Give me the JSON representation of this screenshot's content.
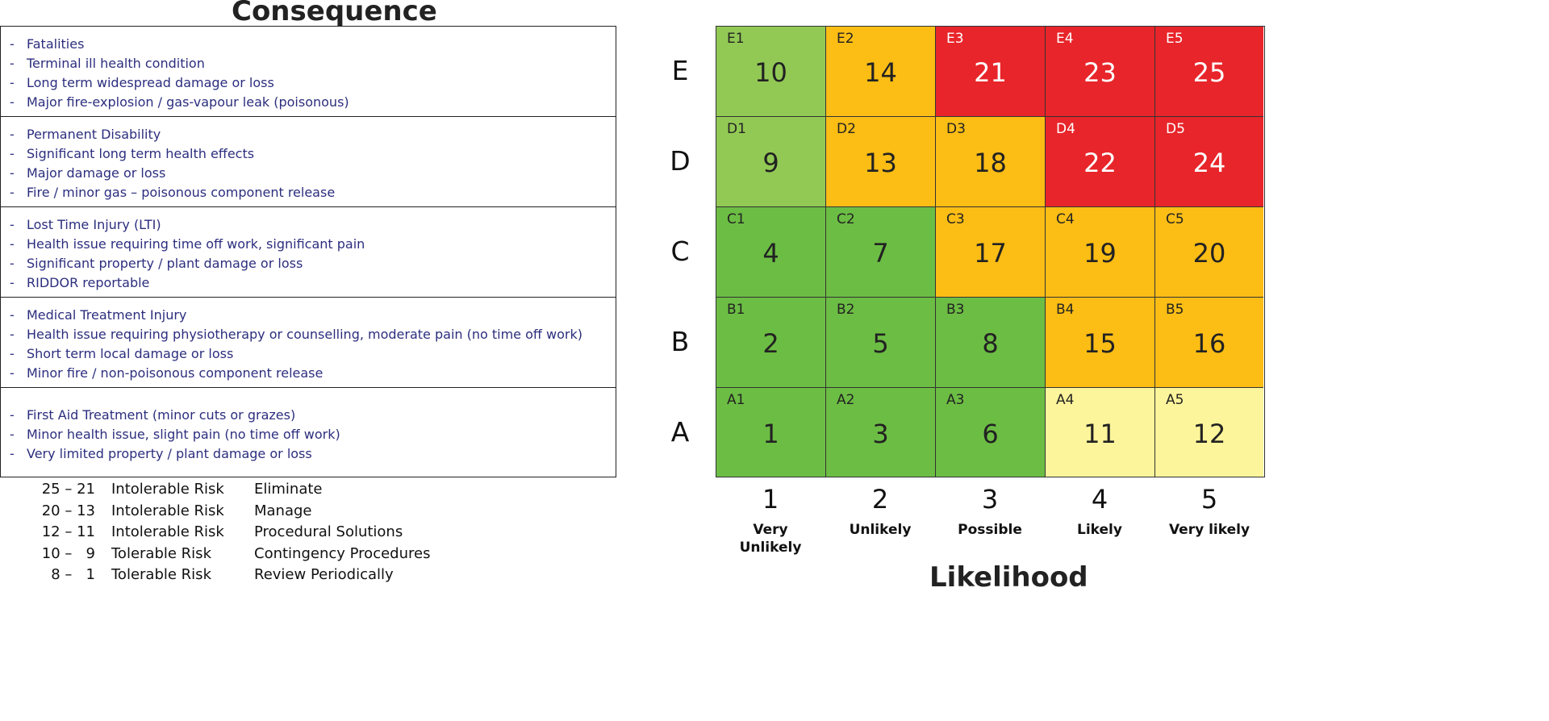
{
  "consequence_title": "Consequence",
  "likelihood_title": "Likelihood",
  "consequence_rows": [
    [
      "Fatalities",
      "Terminal ill health condition",
      "Long term widespread damage or loss",
      "Major fire-explosion / gas-vapour leak (poisonous)"
    ],
    [
      "Permanent Disability",
      "Significant long term health effects",
      "Major damage or loss",
      "Fire / minor gas – poisonous component release"
    ],
    [
      "Lost Time Injury (LTI)",
      "Health issue requiring time off work, significant pain",
      "Significant property / plant damage or loss",
      "RIDDOR reportable"
    ],
    [
      "Medical Treatment Injury",
      "Health issue requiring physiotherapy or counselling, moderate pain (no time off work)",
      "Short term local damage or loss",
      "Minor fire / non-poisonous component release"
    ],
    [
      "First Aid Treatment (minor cuts or grazes)",
      "Minor health issue, slight pain (no time off work)",
      "Very limited property / plant damage or loss"
    ]
  ],
  "risk_key": [
    {
      "range": "25 – 21",
      "level": "Intolerable Risk",
      "action": "Eliminate"
    },
    {
      "range": "20 – 13",
      "level": "Intolerable Risk",
      "action": "Manage"
    },
    {
      "range": "12 – 11",
      "level": "Intolerable Risk",
      "action": "Procedural Solutions"
    },
    {
      "range": "10 –   9",
      "level": "Tolerable Risk",
      "action": "Contingency Procedures"
    },
    {
      "range": "8 –   1",
      "level": "Tolerable Risk",
      "action": "Review Periodically"
    }
  ],
  "matrix_rows": [
    {
      "label": "E",
      "cells": [
        {
          "code": "E1",
          "score": "10",
          "color": "#92c955",
          "text": "#222222"
        },
        {
          "code": "E2",
          "score": "14",
          "color": "#fcbd15",
          "text": "#222222"
        },
        {
          "code": "E3",
          "score": "21",
          "color": "#e8252a",
          "text": "#ffffff"
        },
        {
          "code": "E4",
          "score": "23",
          "color": "#e8252a",
          "text": "#ffffff"
        },
        {
          "code": "E5",
          "score": "25",
          "color": "#e8252a",
          "text": "#ffffff"
        }
      ]
    },
    {
      "label": "D",
      "cells": [
        {
          "code": "D1",
          "score": "9",
          "color": "#92c955",
          "text": "#222222"
        },
        {
          "code": "D2",
          "score": "13",
          "color": "#fcbd15",
          "text": "#222222"
        },
        {
          "code": "D3",
          "score": "18",
          "color": "#fcbd15",
          "text": "#222222"
        },
        {
          "code": "D4",
          "score": "22",
          "color": "#e8252a",
          "text": "#ffffff"
        },
        {
          "code": "D5",
          "score": "24",
          "color": "#e8252a",
          "text": "#ffffff"
        }
      ]
    },
    {
      "label": "C",
      "cells": [
        {
          "code": "C1",
          "score": "4",
          "color": "#6cbd44",
          "text": "#222222"
        },
        {
          "code": "C2",
          "score": "7",
          "color": "#6cbd44",
          "text": "#222222"
        },
        {
          "code": "C3",
          "score": "17",
          "color": "#fcbd15",
          "text": "#222222"
        },
        {
          "code": "C4",
          "score": "19",
          "color": "#fcbd15",
          "text": "#222222"
        },
        {
          "code": "C5",
          "score": "20",
          "color": "#fcbd15",
          "text": "#222222"
        }
      ]
    },
    {
      "label": "B",
      "cells": [
        {
          "code": "B1",
          "score": "2",
          "color": "#6cbd44",
          "text": "#222222"
        },
        {
          "code": "B2",
          "score": "5",
          "color": "#6cbd44",
          "text": "#222222"
        },
        {
          "code": "B3",
          "score": "8",
          "color": "#6cbd44",
          "text": "#222222"
        },
        {
          "code": "B4",
          "score": "15",
          "color": "#fcbd15",
          "text": "#222222"
        },
        {
          "code": "B5",
          "score": "16",
          "color": "#fcbd15",
          "text": "#222222"
        }
      ]
    },
    {
      "label": "A",
      "cells": [
        {
          "code": "A1",
          "score": "1",
          "color": "#6cbd44",
          "text": "#222222"
        },
        {
          "code": "A2",
          "score": "3",
          "color": "#6cbd44",
          "text": "#222222"
        },
        {
          "code": "A3",
          "score": "6",
          "color": "#6cbd44",
          "text": "#222222"
        },
        {
          "code": "A4",
          "score": "11",
          "color": "#fdf59b",
          "text": "#222222"
        },
        {
          "code": "A5",
          "score": "12",
          "color": "#fdf59b",
          "text": "#222222"
        }
      ]
    }
  ],
  "likelihood_columns": [
    {
      "num": "1",
      "label": "Very Unlikely"
    },
    {
      "num": "2",
      "label": "Unlikely"
    },
    {
      "num": "3",
      "label": "Possible"
    },
    {
      "num": "4",
      "label": "Likely"
    },
    {
      "num": "5",
      "label": "Very likely"
    }
  ]
}
